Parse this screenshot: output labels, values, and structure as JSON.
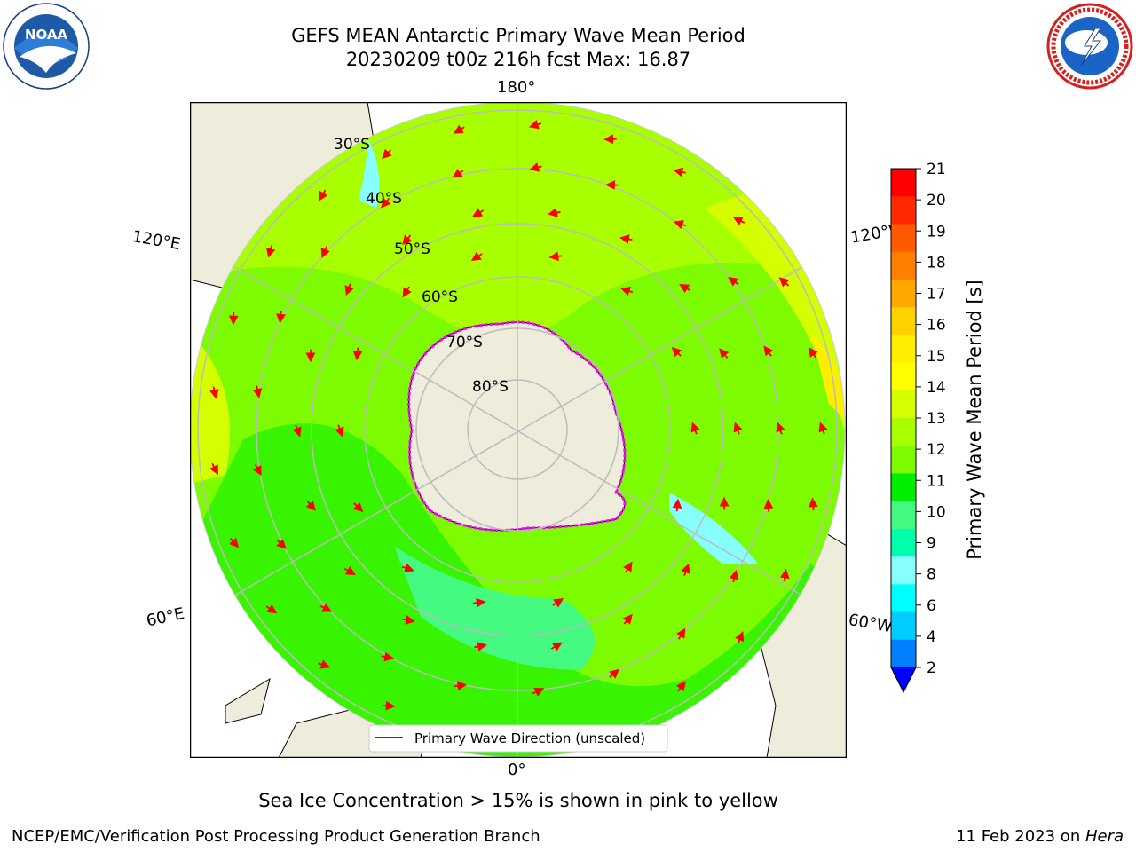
{
  "title": {
    "line1": "GEFS MEAN Antarctic Primary Wave Mean Period",
    "line2": "20230209 t00z 216h fcst   Max: 16.87"
  },
  "map": {
    "projection": "south-polar stereographic",
    "longitude_labels": {
      "top": "180°",
      "bottom": "0°",
      "upper_left": "120°E",
      "upper_right": "120°W",
      "lower_left": "60°E",
      "lower_right": "60°W"
    },
    "latitude_labels": [
      "30°S",
      "40°S",
      "50°S",
      "60°S",
      "70°S",
      "80°S"
    ],
    "legend": {
      "label": "Primary Wave Direction (unscaled)",
      "placement": "bottom-center"
    },
    "colors": {
      "land": "#eeecdb",
      "dominant_field": "#7dfb00",
      "arrows": "#ff0000",
      "sea_ice": "#ff00ff",
      "graticule": "#bbbbbb"
    }
  },
  "colorbar": {
    "label": "Primary Wave Mean Period [s]",
    "ticks": [
      "21",
      "20",
      "19",
      "18",
      "17",
      "16",
      "15",
      "14",
      "13",
      "12",
      "11",
      "10",
      "9",
      "8",
      "6",
      "4",
      "2"
    ],
    "colors_top_to_bottom": [
      "#ff0000",
      "#ff2a00",
      "#ff5a00",
      "#ff8000",
      "#ffa800",
      "#ffd200",
      "#ffee00",
      "#ffff00",
      "#d4ff00",
      "#a8ff00",
      "#7dfb00",
      "#00ee00",
      "#44fa80",
      "#00ffaa",
      "#88ffff",
      "#00ffff",
      "#00ccff",
      "#0080ff",
      "#0000ff"
    ],
    "extend": "min"
  },
  "subtitle": "Sea Ice Concentration > 15% is shown in pink to yellow",
  "footer": {
    "left": "NCEP/EMC/Verification Post Processing Product Generation Branch",
    "date": "11 Feb 2023 on ",
    "machine": "Hera"
  },
  "logos": {
    "noaa_icon": "noaa-logo",
    "noaa_text": "NOAA",
    "nws_icon": "nws-logo"
  }
}
